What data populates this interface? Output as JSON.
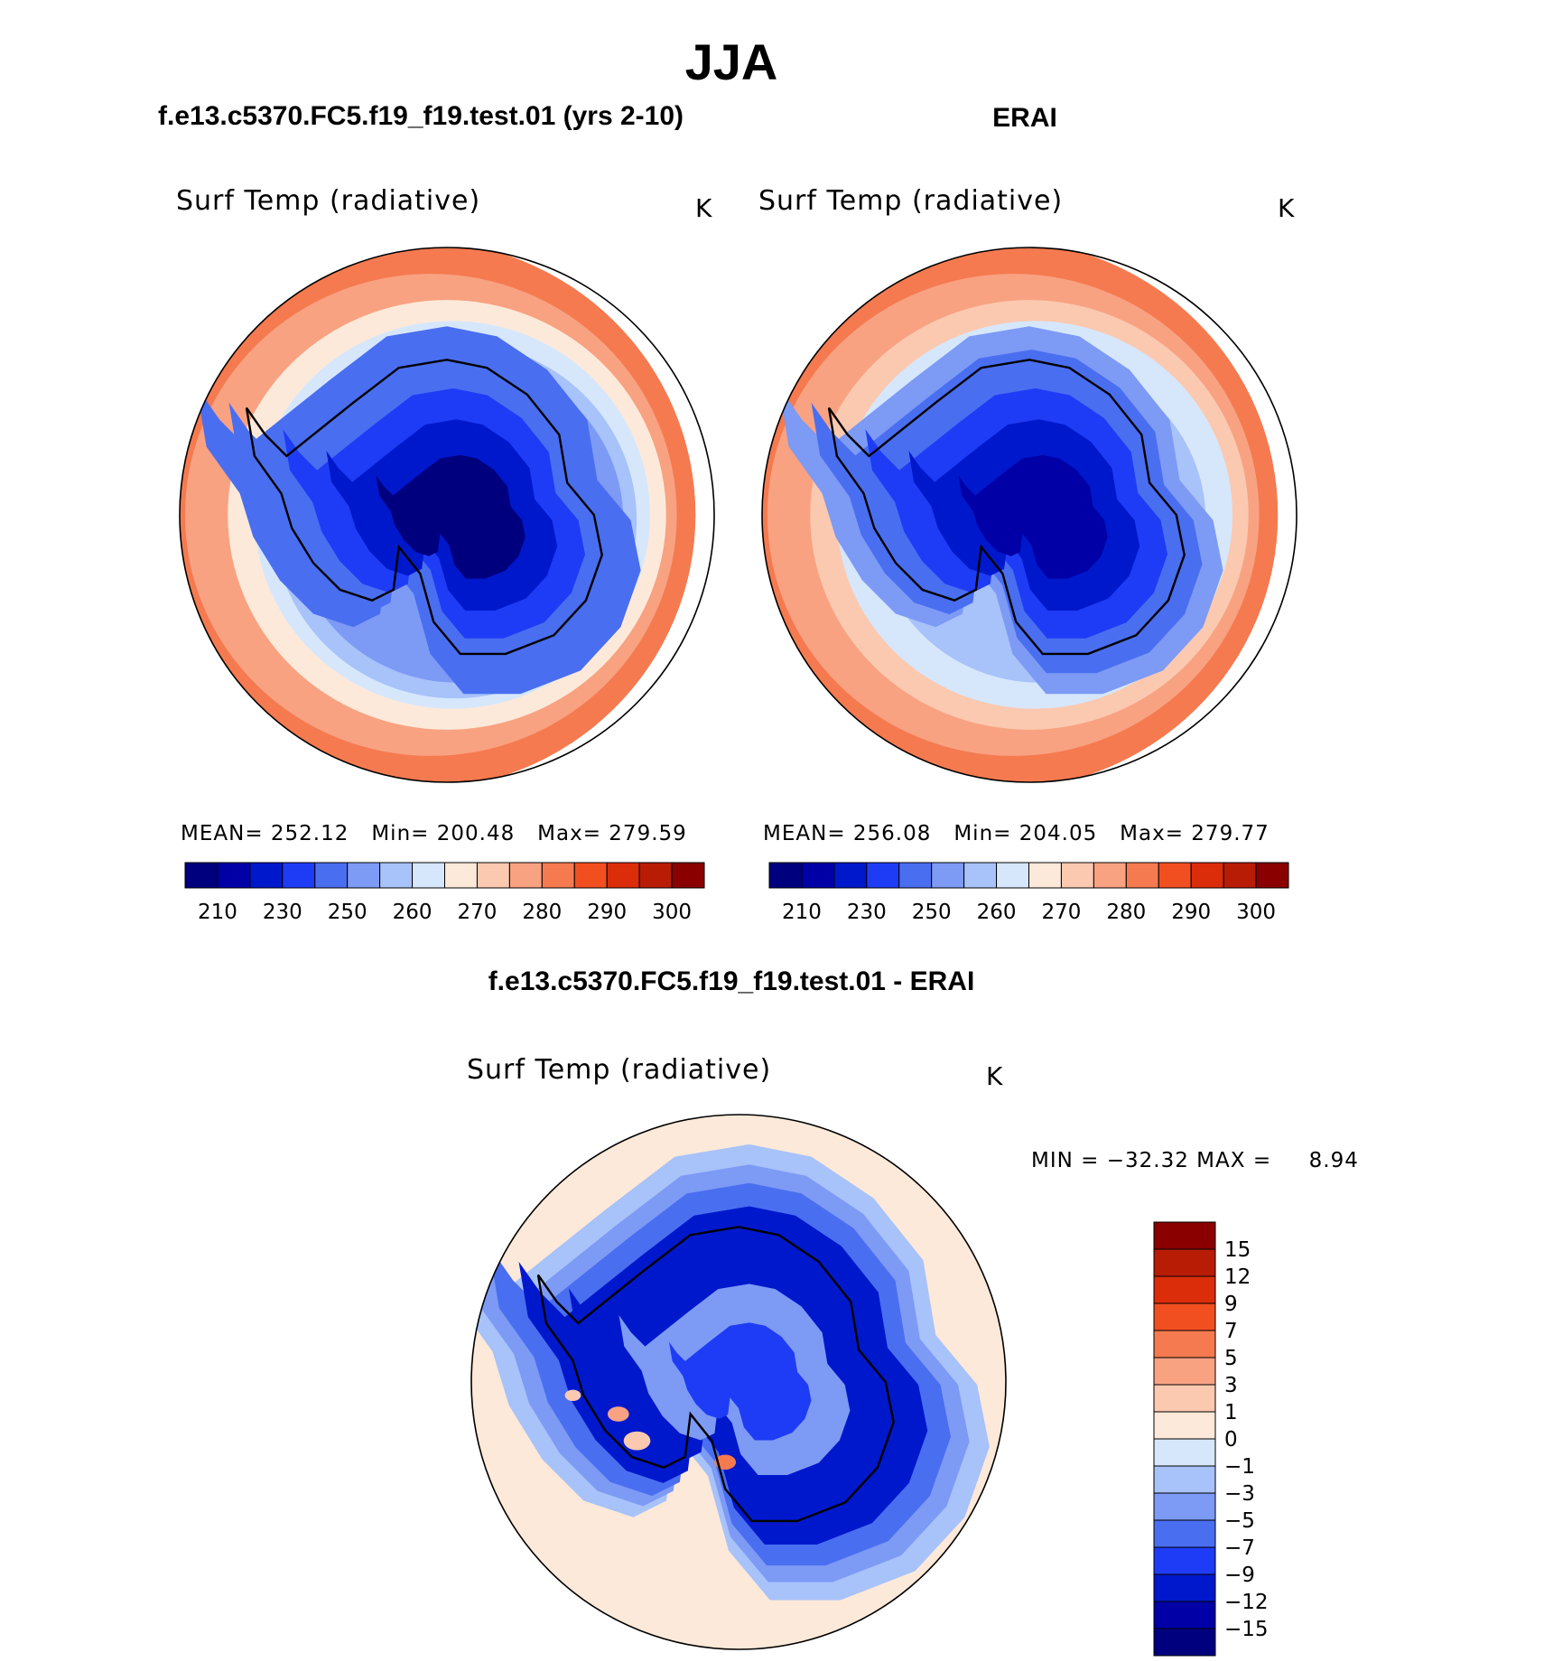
{
  "figure": {
    "title": "JJA",
    "left_title": "f.e13.c5370.FC5.f19_f19.test.01 (yrs 2-10)",
    "right_title": "ERAI",
    "diff_title": "f.e13.c5370.FC5.f19_f19.test.01 - ERAI"
  },
  "colors": {
    "abs_levels": [
      "#00007f",
      "#0000a6",
      "#0018cc",
      "#1e3cf5",
      "#4a6ef0",
      "#7d9af5",
      "#a8c2fa",
      "#d6e7fc",
      "#fde9d9",
      "#fbc9b0",
      "#f8a282",
      "#f57a50",
      "#f24f20",
      "#db2d0a",
      "#b81c05",
      "#8a0000"
    ],
    "diff_levels": [
      "#00007f",
      "#0000a6",
      "#0018cc",
      "#1e3cf5",
      "#4a6ef0",
      "#7d9af5",
      "#a8c2fa",
      "#d6e7fc",
      "#fde9d9",
      "#fbc9b0",
      "#f8a282",
      "#f57a50",
      "#f24f20",
      "#db2d0a",
      "#b81c05",
      "#8a0000"
    ]
  },
  "chart_data": [
    {
      "type": "heatmap",
      "projection": "south-polar-stereographic",
      "variable": "Surf Temp (radiative)",
      "units": "K",
      "stats": {
        "mean_label": "MEAN=",
        "mean": "252.12",
        "min_label": "Min=",
        "min": "200.48",
        "max_label": "Max=",
        "max": "279.59"
      },
      "colorbar": {
        "orientation": "horizontal",
        "tick_labels": [
          "210",
          "230",
          "250",
          "260",
          "270",
          "280",
          "290",
          "300"
        ]
      },
      "field": {
        "pole_value": 206,
        "shelf_value": 222,
        "coast_value": 240,
        "ocean_inner": 262,
        "ocean_outer": 280
      }
    },
    {
      "type": "heatmap",
      "projection": "south-polar-stereographic",
      "variable": "Surf Temp (radiative)",
      "units": "K",
      "stats": {
        "mean_label": "MEAN=",
        "mean": "256.08",
        "min_label": "Min=",
        "min": "204.05",
        "max_label": "Max=",
        "max": "279.77"
      },
      "colorbar": {
        "orientation": "horizontal",
        "tick_labels": [
          "210",
          "230",
          "250",
          "260",
          "270",
          "280",
          "290",
          "300"
        ]
      },
      "field": {
        "pole_value": 214,
        "shelf_value": 226,
        "coast_value": 246,
        "ocean_inner": 264,
        "ocean_outer": 281
      }
    },
    {
      "type": "heatmap",
      "projection": "south-polar-stereographic",
      "variable": "Surf Temp (radiative)",
      "units": "K",
      "stats": {
        "min_label": "MIN =",
        "min": "−32.32",
        "max_label": "MAX =",
        "max": "8.94"
      },
      "colorbar": {
        "orientation": "vertical",
        "tick_labels": [
          "15",
          "12",
          "9",
          "7",
          "5",
          "3",
          "1",
          "0",
          "−1",
          "−3",
          "−5",
          "−7",
          "−9",
          "−12",
          "−15"
        ]
      },
      "field": {
        "interior_value": -9,
        "coast_value": -12,
        "sea_ice_value": -6,
        "ocean_value": 0.5
      }
    }
  ]
}
